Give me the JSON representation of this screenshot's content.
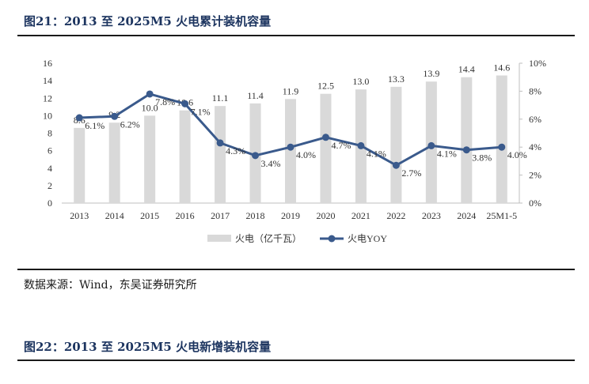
{
  "figure1": {
    "title": "图21：2013 至 2025M5 火电累计装机容量",
    "source": "数据来源：Wind，东吴证券研究所"
  },
  "figure2": {
    "title": "图22：2013 至 2025M5 火电新增装机容量"
  },
  "chart_data": {
    "type": "bar",
    "categories": [
      "2013",
      "2014",
      "2015",
      "2016",
      "2017",
      "2018",
      "2019",
      "2020",
      "2021",
      "2022",
      "2023",
      "2024",
      "25M1-5"
    ],
    "series": [
      {
        "name": "火电（亿千瓦）",
        "type": "bar",
        "axis": "left",
        "color": "#d9d9d9",
        "values": [
          8.6,
          9.2,
          10.0,
          10.6,
          11.1,
          11.4,
          11.9,
          12.5,
          13.0,
          13.3,
          13.9,
          14.4,
          14.6
        ],
        "labels": [
          "8.6",
          "9.2",
          "10.0",
          "10.6",
          "11.1",
          "11.4",
          "11.9",
          "12.5",
          "13.0",
          "13.3",
          "13.9",
          "14.4",
          "14.6"
        ]
      },
      {
        "name": "火电YOY",
        "type": "line",
        "axis": "right",
        "color": "#3a5a8c",
        "values": [
          6.1,
          6.2,
          7.8,
          7.1,
          4.3,
          3.4,
          4.0,
          4.7,
          4.1,
          2.7,
          4.1,
          3.8,
          4.0
        ],
        "labels": [
          "6.1%",
          "6.2%",
          "7.8%",
          "7.1%",
          "4.3%",
          "3.4%",
          "4.0%",
          "4.7%",
          "4.1%",
          "2.7%",
          "4.1%",
          "3.8%",
          "4.0%"
        ]
      }
    ],
    "y_left": {
      "ylim": [
        0,
        16
      ],
      "ticks": [
        "0",
        "2",
        "4",
        "6",
        "8",
        "10",
        "12",
        "14",
        "16"
      ]
    },
    "y_right": {
      "ylim": [
        0,
        10
      ],
      "ticks": [
        "0%",
        "2%",
        "4%",
        "6%",
        "8%",
        "10%"
      ]
    },
    "legend_position": "bottom",
    "grid": false
  }
}
